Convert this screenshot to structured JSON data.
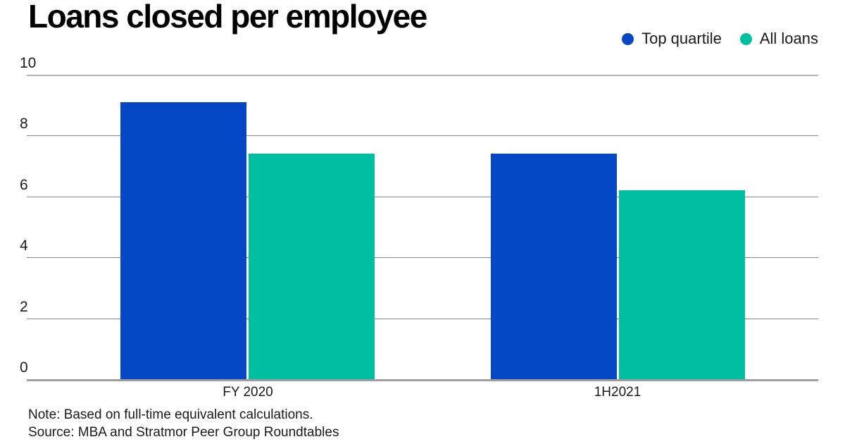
{
  "chart_data": {
    "type": "bar",
    "title": "Loans closed per employee",
    "categories": [
      "FY 2020",
      "1H2021"
    ],
    "series": [
      {
        "name": "Top quartile",
        "color": "#0547c4",
        "values": [
          9.1,
          7.4
        ]
      },
      {
        "name": "All loans",
        "color": "#00bfa1",
        "values": [
          7.4,
          6.2
        ]
      }
    ],
    "ylim": [
      0,
      10
    ],
    "yticks": [
      0,
      2,
      4,
      6,
      8,
      10
    ],
    "grid": true,
    "legend_position": "top-right",
    "gridline_color": "#878787",
    "axis_color": "#9e9e9e",
    "note": "Note: Based on full-time equivalent calculations.",
    "source": "Source: MBA and Stratmor Peer Group Roundtables"
  }
}
